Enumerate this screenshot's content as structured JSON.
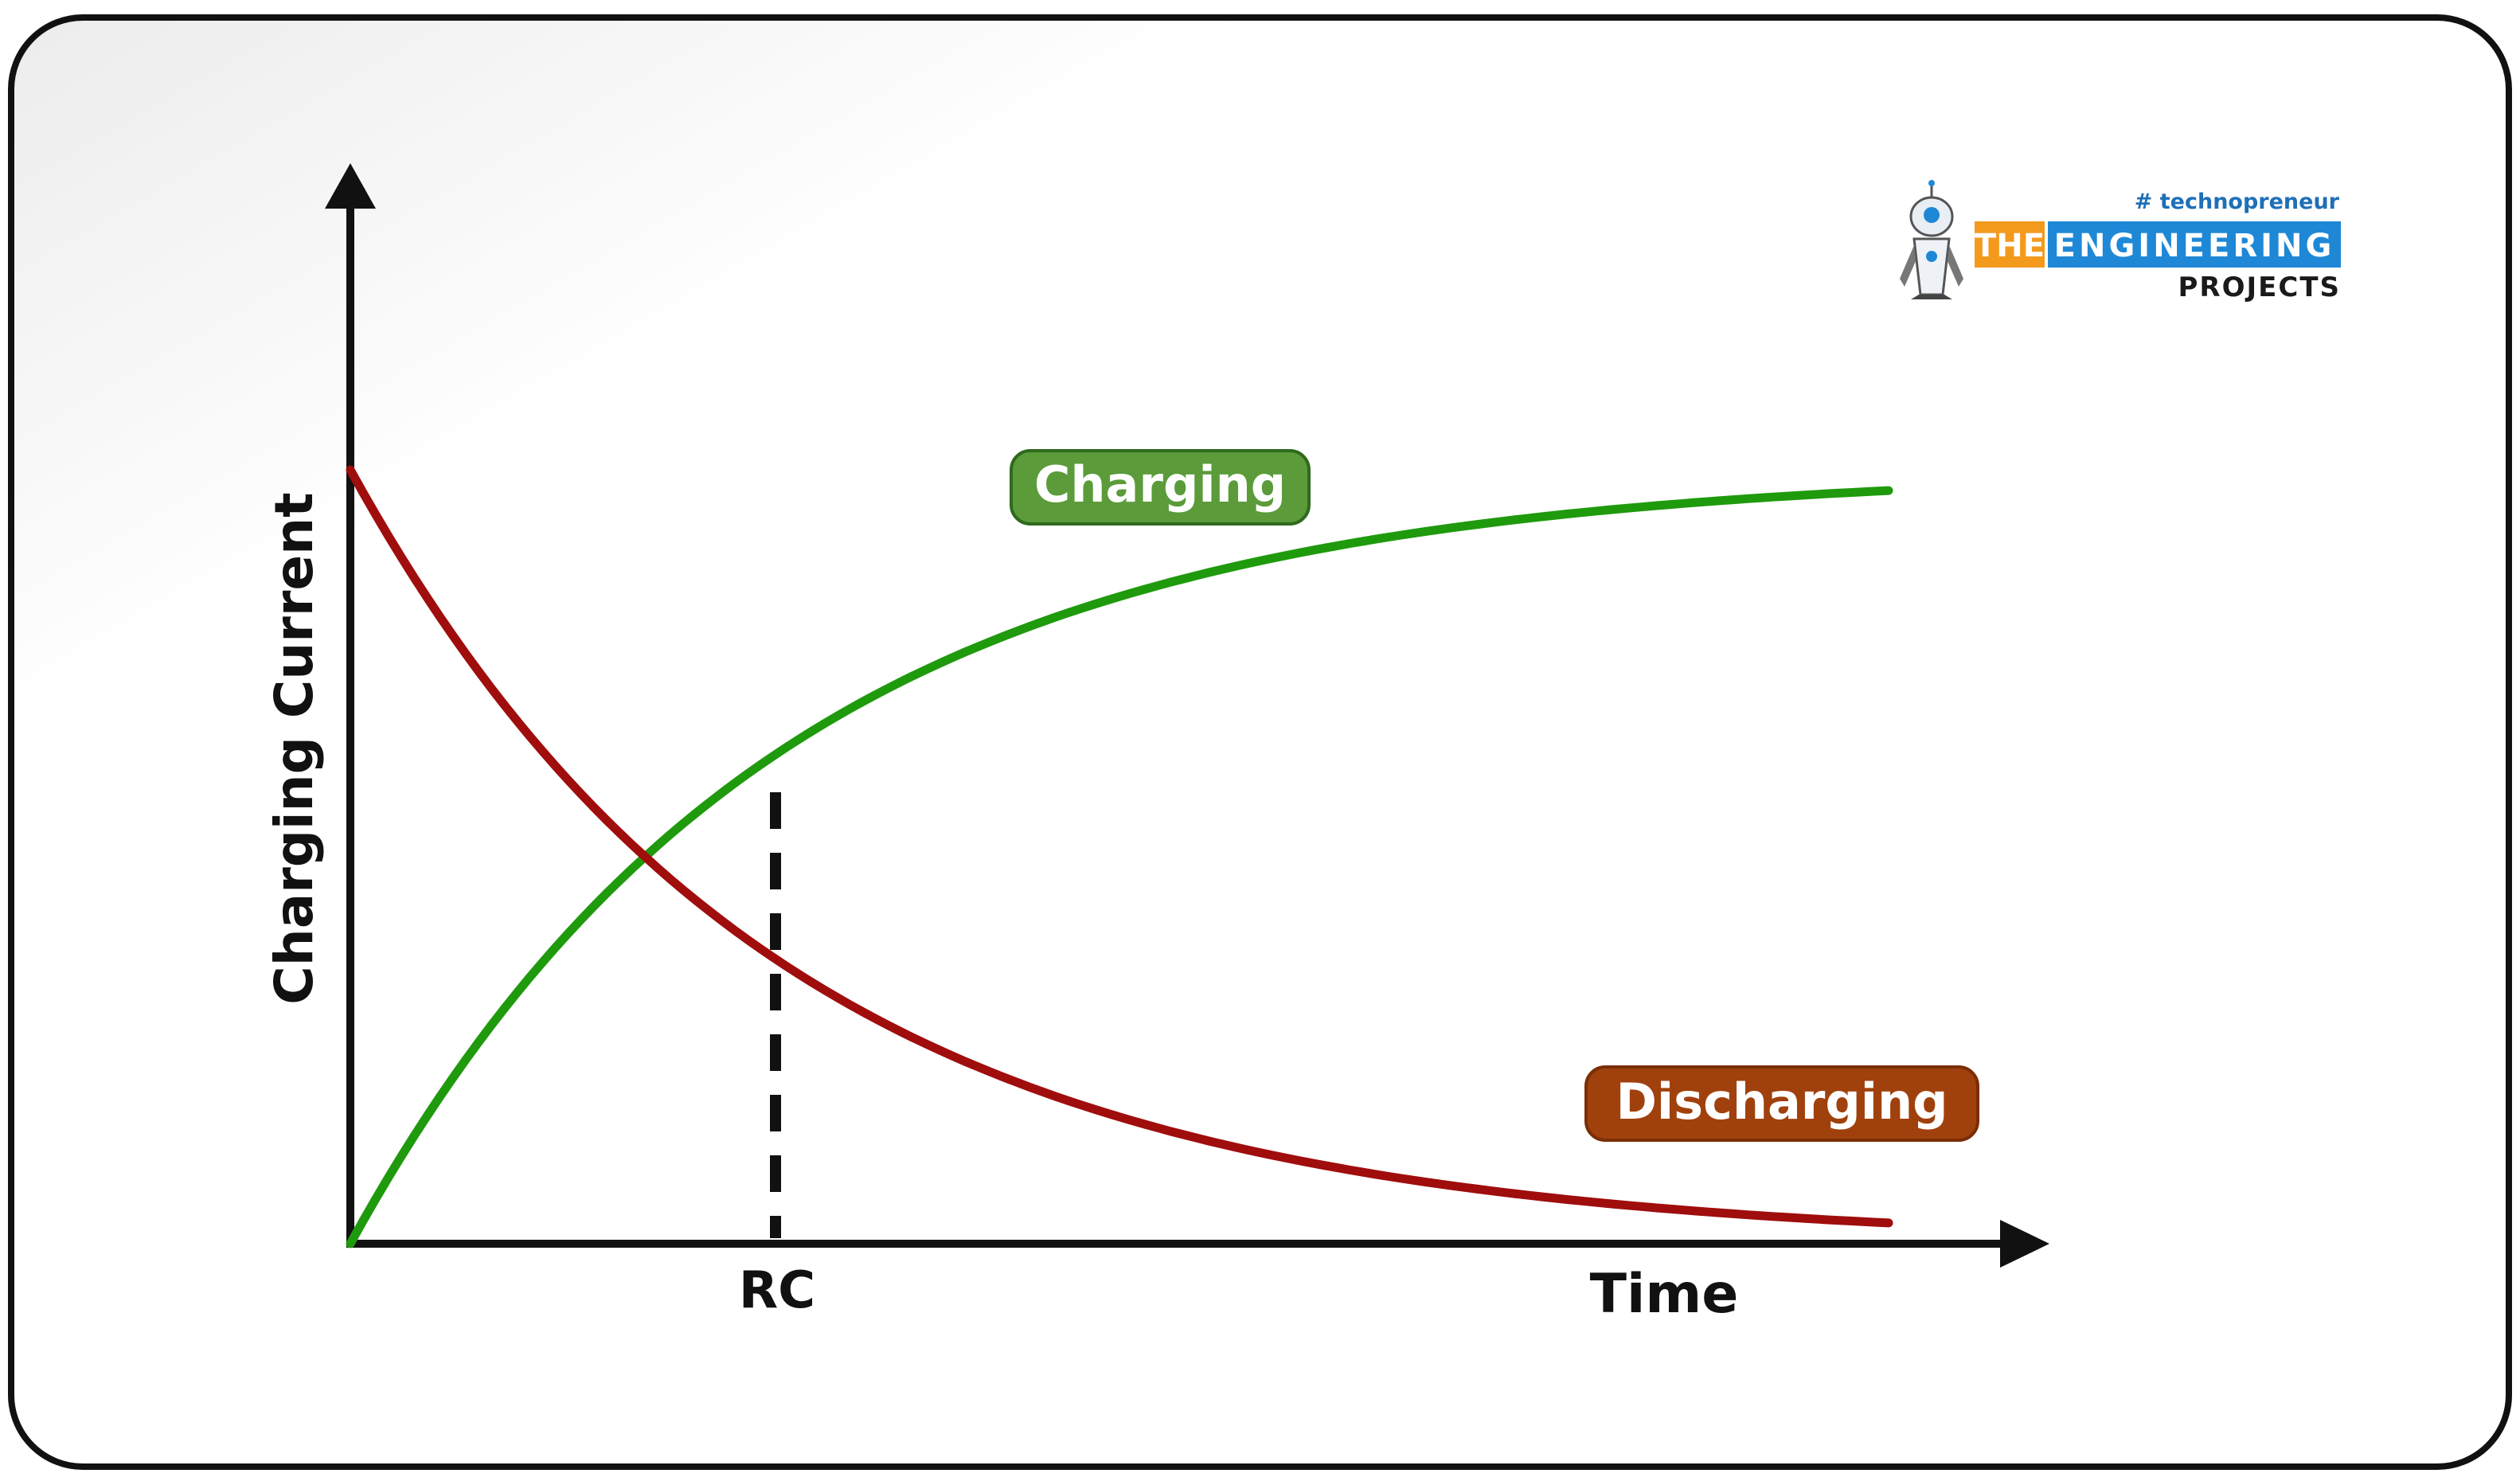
{
  "figure": {
    "y_axis_label": "Charging Current",
    "x_axis_label": "Time",
    "x_marker_label": "RC",
    "curves": [
      {
        "name": "Charging",
        "color": "#1f9a0d",
        "badge_color": "#5b9b3a",
        "shape": "exponential rise from 0 toward a plateau"
      },
      {
        "name": "Discharging",
        "color": "#a00d0d",
        "badge_color": "#a0410d",
        "shape": "exponential decay from a maximum toward 0"
      }
    ],
    "marker": {
      "style": "dashed vertical line",
      "at": "RC",
      "note": "curves intersect at RC"
    }
  },
  "logo": {
    "tagline": "# technopreneur",
    "word_the": "THE",
    "word_engineering": "ENGINEERING",
    "word_projects": "PROJECTS",
    "colors": {
      "orange": "#f39a1c",
      "blue": "#1e88d6",
      "dark": "#1a1a1a"
    }
  },
  "frame": {
    "border_color": "#111111",
    "background": "#ffffff"
  }
}
